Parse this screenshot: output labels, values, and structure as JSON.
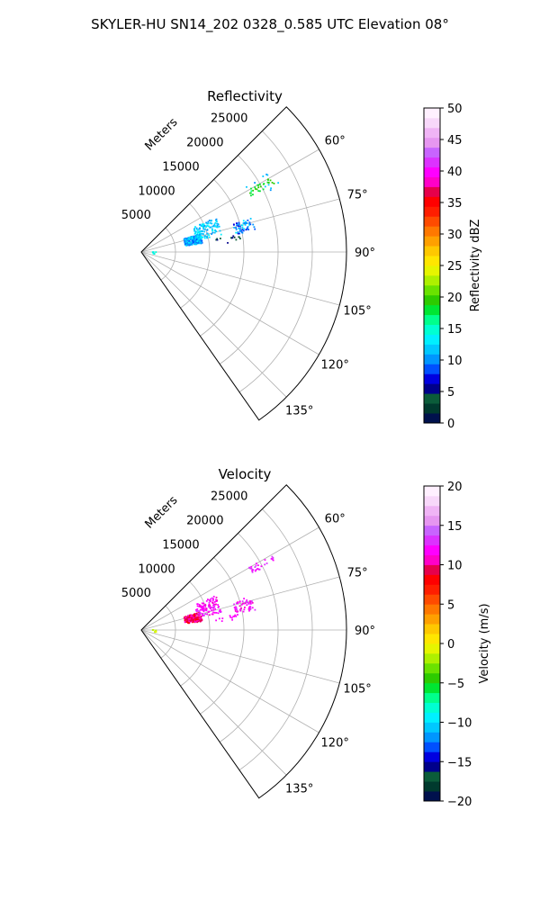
{
  "figure": {
    "suptitle": "SKYLER-HU  SN14_202  0328_0.585 UTC Elevation 08°"
  },
  "chart_data": [
    {
      "type": "polar-scatter",
      "title": "Reflectivity",
      "radial_axis_label": "Meters",
      "radial_ticks": [
        "5000",
        "10000",
        "15000",
        "20000",
        "25000"
      ],
      "radial_tick_values": [
        5000,
        10000,
        15000,
        20000,
        25000
      ],
      "rmax": 30000,
      "angle_ticks": [
        "60°",
        "75°",
        "90°",
        "105°",
        "120°",
        "135°"
      ],
      "angle_tick_values": [
        60,
        75,
        90,
        105,
        120,
        135
      ],
      "theta_range_deg": [
        45,
        145
      ],
      "theta_zero": "N",
      "theta_direction": "clockwise",
      "grid": true,
      "colorbar": {
        "label": "Reflectivity dBZ",
        "ticks": [
          "0",
          "5",
          "10",
          "15",
          "20",
          "25",
          "30",
          "35",
          "40",
          "45",
          "50"
        ],
        "range": [
          0,
          50
        ],
        "colors": [
          "#00114d",
          "#003a2e",
          "#0b5c3a",
          "#00008b",
          "#0000e0",
          "#0050ff",
          "#0096ff",
          "#00c8ff",
          "#00f0ff",
          "#00ffd2",
          "#00ff8c",
          "#00e632",
          "#2dcb00",
          "#6ae200",
          "#aef000",
          "#e6f500",
          "#ffe600",
          "#ffc800",
          "#ffa000",
          "#ff7800",
          "#ff4b00",
          "#ff1e00",
          "#ff0000",
          "#e6004b",
          "#ff00c8",
          "#ff00ff",
          "#dc32ff",
          "#c864ff",
          "#e696f0",
          "#f0b4f5",
          "#f8d8fa",
          "#fff0ff"
        ]
      },
      "clusters": [
        {
          "r_range": [
            6500,
            9000
          ],
          "theta_range": [
            73,
            82
          ],
          "value_range": [
            8,
            13
          ],
          "count": 230
        },
        {
          "r_range": [
            8200,
            12000
          ],
          "theta_range": [
            65,
            78
          ],
          "value_range": [
            10,
            14
          ],
          "count": 110
        },
        {
          "r_range": [
            14000,
            17000
          ],
          "theta_range": [
            73,
            80
          ],
          "value_range": [
            7,
            14
          ],
          "count": 55
        },
        {
          "r_range": [
            18000,
            22000
          ],
          "theta_range": [
            60,
            63
          ],
          "value_range": [
            17,
            20
          ],
          "count": 28
        },
        {
          "r_range": [
            18000,
            23000
          ],
          "theta_range": [
            58,
            66
          ],
          "value_range": [
            10,
            13
          ],
          "count": 10
        },
        {
          "r_range": [
            11000,
            15000
          ],
          "theta_range": [
            80,
            84
          ],
          "value_range": [
            3,
            6
          ],
          "count": 14
        },
        {
          "r_range": [
            1500,
            2200
          ],
          "theta_range": [
            89,
            92
          ],
          "value_range": [
            13,
            16
          ],
          "count": 3
        },
        {
          "r_range": [
            1500,
            2200
          ],
          "theta_range": [
            95,
            99
          ],
          "value_range": [
            13,
            18
          ],
          "count": 4
        }
      ]
    },
    {
      "type": "polar-scatter",
      "title": "Velocity",
      "radial_axis_label": "Meters",
      "radial_ticks": [
        "5000",
        "10000",
        "15000",
        "20000",
        "25000"
      ],
      "radial_tick_values": [
        5000,
        10000,
        15000,
        20000,
        25000
      ],
      "rmax": 30000,
      "angle_ticks": [
        "60°",
        "75°",
        "90°",
        "105°",
        "120°",
        "135°"
      ],
      "angle_tick_values": [
        60,
        75,
        90,
        105,
        120,
        135
      ],
      "theta_range_deg": [
        45,
        145
      ],
      "theta_zero": "N",
      "theta_direction": "clockwise",
      "grid": true,
      "colorbar": {
        "label": "Velocity (m/s)",
        "ticks": [
          "−20",
          "−15",
          "−10",
          "−5",
          "0",
          "5",
          "10",
          "15",
          "20"
        ],
        "range": [
          -20,
          20
        ],
        "colors": [
          "#00114d",
          "#003a2e",
          "#0b5c3a",
          "#00008b",
          "#0000e0",
          "#0050ff",
          "#0096ff",
          "#00c8ff",
          "#00f0ff",
          "#00ffd2",
          "#00ff8c",
          "#00e632",
          "#2dcb00",
          "#6ae200",
          "#aef000",
          "#e6f500",
          "#ffe600",
          "#ffc800",
          "#ffa000",
          "#ff7800",
          "#ff4b00",
          "#ff1e00",
          "#ff0000",
          "#e6004b",
          "#ff00c8",
          "#ff00ff",
          "#dc32ff",
          "#c864ff",
          "#e696f0",
          "#f0b4f5",
          "#f8d8fa",
          "#fff0ff"
        ]
      },
      "clusters": [
        {
          "r_range": [
            6500,
            9000
          ],
          "theta_range": [
            73,
            82
          ],
          "value_range": [
            8,
            11
          ],
          "count": 230
        },
        {
          "r_range": [
            8200,
            12000
          ],
          "theta_range": [
            65,
            78
          ],
          "value_range": [
            11,
            13
          ],
          "count": 110
        },
        {
          "r_range": [
            14000,
            17000
          ],
          "theta_range": [
            73,
            80
          ],
          "value_range": [
            11,
            13
          ],
          "count": 55
        },
        {
          "r_range": [
            18000,
            22000
          ],
          "theta_range": [
            60,
            63
          ],
          "value_range": [
            12,
            13
          ],
          "count": 28
        },
        {
          "r_range": [
            11000,
            15000
          ],
          "theta_range": [
            80,
            84
          ],
          "value_range": [
            11,
            12.5
          ],
          "count": 14
        },
        {
          "r_range": [
            1500,
            2200
          ],
          "theta_range": [
            89,
            92
          ],
          "value_range": [
            -2,
            -1
          ],
          "count": 3
        },
        {
          "r_range": [
            1500,
            2200
          ],
          "theta_range": [
            95,
            99
          ],
          "value_range": [
            -2,
            -1
          ],
          "count": 4
        }
      ]
    }
  ]
}
